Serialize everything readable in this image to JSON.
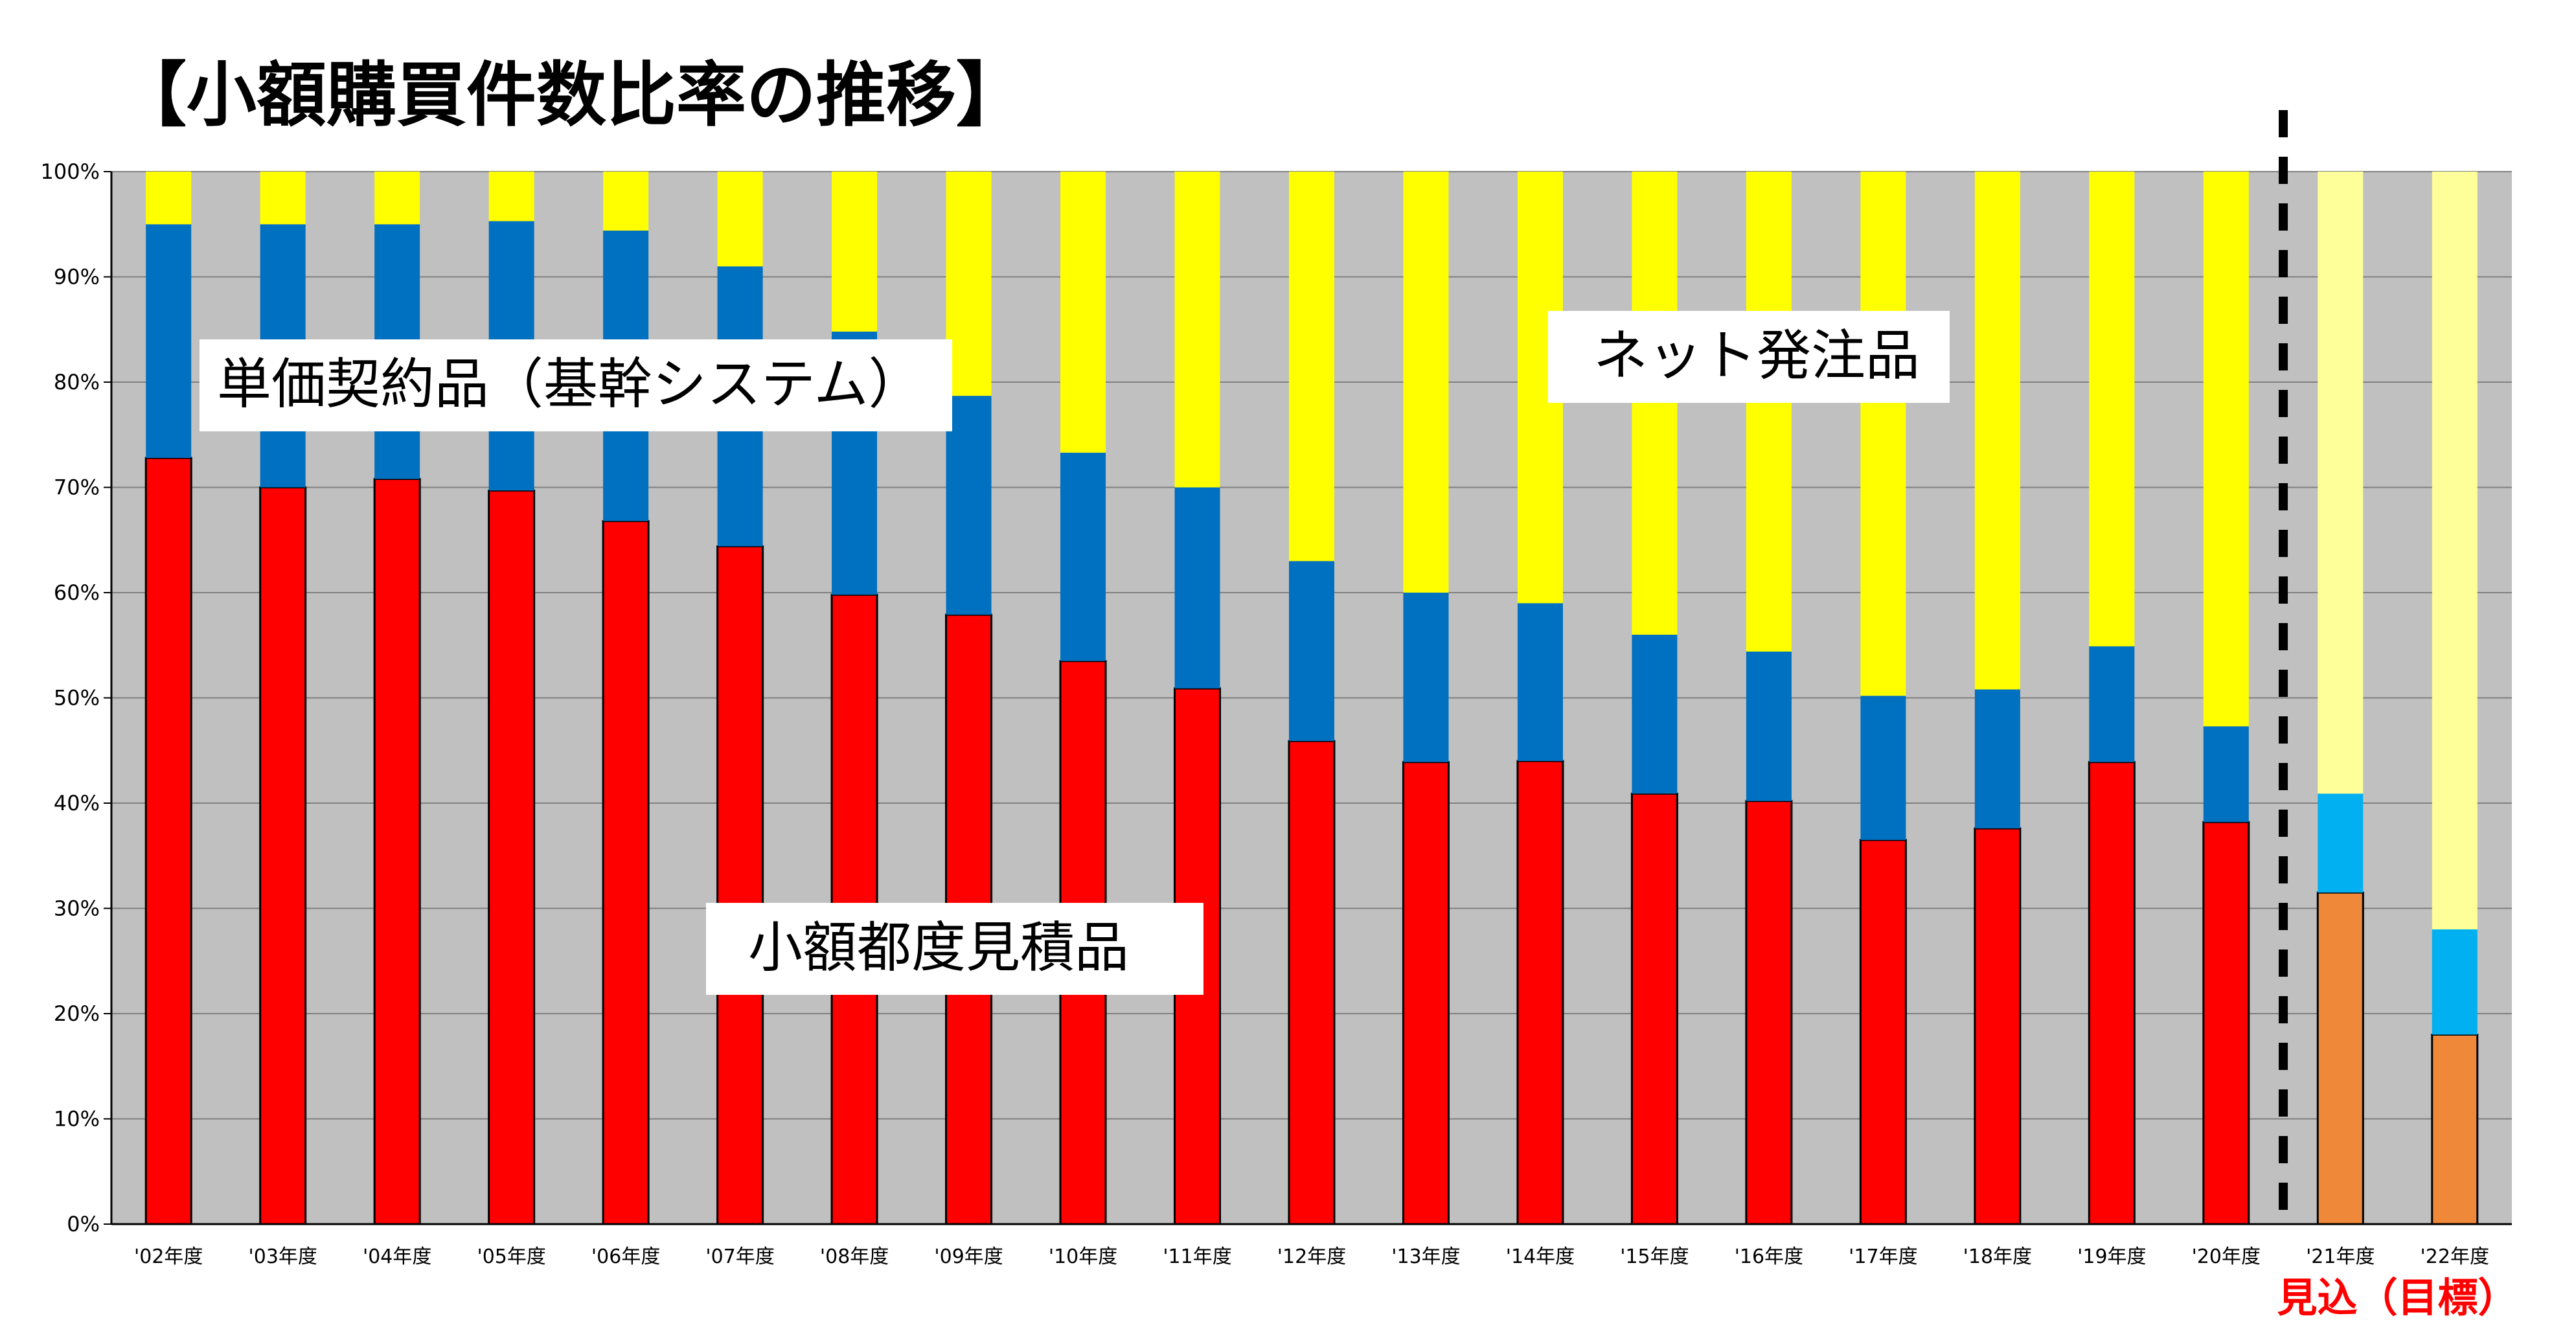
{
  "title": "【小額購買件数比率の推移】",
  "chart_data": {
    "type": "bar",
    "stacked": true,
    "categories": [
      "'02年度",
      "'03年度",
      "'04年度",
      "'05年度",
      "'06年度",
      "'07年度",
      "'08年度",
      "'09年度",
      "'10年度",
      "'11年度",
      "'12年度",
      "'13年度",
      "'14年度",
      "'15年度",
      "'16年度",
      "'17年度",
      "'18年度",
      "'19年度",
      "'20年度",
      "'21年度",
      "'22年度"
    ],
    "series": [
      {
        "name": "小額都度見積品",
        "color": "#ff0000",
        "forecast_color": "#f0883a",
        "values": [
          72.8,
          70.0,
          70.8,
          69.7,
          66.8,
          64.4,
          59.8,
          57.9,
          53.5,
          50.9,
          45.9,
          43.9,
          44.0,
          40.9,
          40.2,
          36.5,
          37.6,
          43.9,
          38.2,
          31.5,
          18.0
        ]
      },
      {
        "name": "単価契約品（基幹システム）",
        "color": "#0070c0",
        "forecast_color": "#00b0f0",
        "values": [
          22.2,
          25.0,
          24.2,
          25.6,
          27.6,
          26.6,
          25.0,
          20.8,
          19.8,
          19.1,
          17.1,
          16.1,
          15.0,
          15.1,
          14.2,
          13.7,
          13.2,
          11.0,
          9.1,
          9.4,
          10.0
        ]
      },
      {
        "name": "ネット発注品",
        "color": "#ffff00",
        "forecast_color": "#ffff99",
        "values": [
          5.0,
          5.0,
          5.0,
          4.7,
          5.6,
          9.0,
          15.2,
          21.3,
          26.7,
          30.0,
          37.0,
          40.0,
          41.0,
          44.0,
          45.6,
          49.8,
          49.2,
          45.1,
          52.7,
          59.1,
          72.0
        ]
      }
    ],
    "forecast_start_index": 19,
    "forecast_label": "見込（目標）",
    "forecast_label_color": "#ff0000",
    "y_ticks": [
      "0%",
      "10%",
      "20%",
      "30%",
      "40%",
      "50%",
      "60%",
      "70%",
      "80%",
      "90%",
      "100%"
    ],
    "ylim": [
      0,
      100
    ],
    "grid": true,
    "plot_background": "#c0c0c0",
    "gridline_color": "#808080"
  }
}
